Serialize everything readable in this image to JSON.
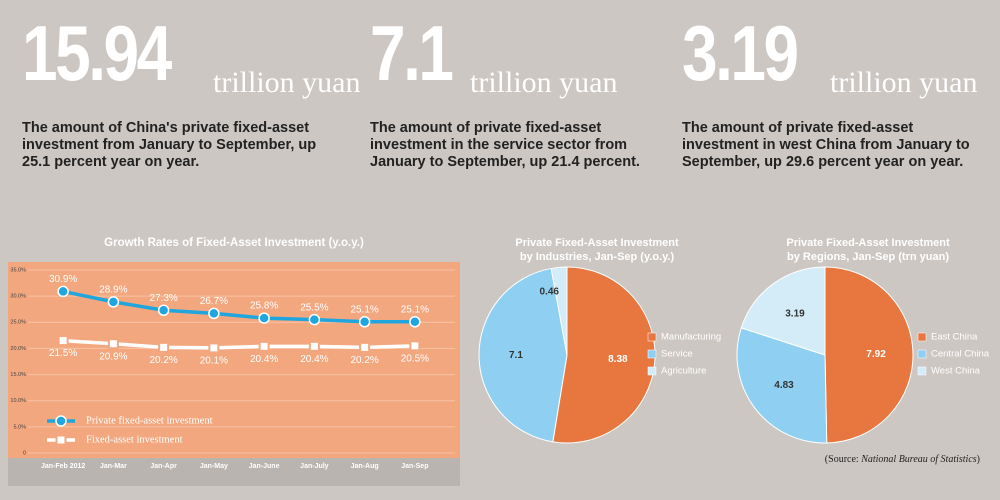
{
  "stats": [
    {
      "number": "15.94",
      "unit": "trillion yuan",
      "text": "The amount of China's private fixed-asset investment from January to September, up 25.1 percent year on year."
    },
    {
      "number": "7.1",
      "unit": "trillion yuan",
      "text": "The amount of private fixed-asset investment in the service sector from January to September, up 21.4 percent."
    },
    {
      "number": "3.19",
      "unit": "trillion yuan",
      "text": "The amount of private fixed-asset investment in west China from January to September, up 29.6 percent year on year."
    }
  ],
  "chart_data": [
    {
      "type": "line",
      "title": "Growth Rates of Fixed-Asset Investment (y.o.y.)",
      "categories": [
        "Jan-Feb 2012",
        "Jan-Mar",
        "Jan-Apr",
        "Jan-May",
        "Jan-June",
        "Jan-July",
        "Jan-Aug",
        "Jan-Sep"
      ],
      "ylim": [
        0,
        35
      ],
      "yticks": [
        0,
        {
          "value": 5,
          "label": "5.0%"
        },
        {
          "value": 10,
          "label": "10.0%"
        },
        {
          "value": 15,
          "label": "15.0%"
        },
        {
          "value": 20,
          "label": "20.0%"
        },
        {
          "value": 25,
          "label": "25.0%"
        },
        {
          "value": 30,
          "label": "30.0%"
        },
        {
          "value": 35,
          "label": "35.0%"
        }
      ],
      "grid": true,
      "legend": "lower left",
      "series": [
        {
          "name": "Private fixed-asset investment",
          "color": "#1fa6df",
          "marker": "circle",
          "values": [
            30.9,
            28.9,
            27.3,
            26.7,
            25.8,
            25.5,
            25.1,
            25.1
          ],
          "value_labels": [
            "30.9%",
            "28.9%",
            "27.3%",
            "26.7%",
            "25.8%",
            "25.5%",
            "25.1%",
            "25.1%"
          ]
        },
        {
          "name": "Fixed-asset investment",
          "color": "#ffffff",
          "marker": "square",
          "values": [
            21.5,
            20.9,
            20.2,
            20.1,
            20.4,
            20.4,
            20.2,
            20.5
          ],
          "value_labels": [
            "21.5%",
            "20.9%",
            "20.2%",
            "20.1%",
            "20.4%",
            "20.4%",
            "20.2%",
            "20.5%"
          ]
        }
      ]
    },
    {
      "type": "pie",
      "title": [
        "Private Fixed-Asset Investment",
        "by Industries, Jan-Sep (y.o.y.)"
      ],
      "categories": [
        "Manufacturing",
        "Service",
        "Agriculture"
      ],
      "values": [
        8.38,
        7.1,
        0.46
      ],
      "colors": [
        "#e8773f",
        "#8fd0f2",
        "#d3ecf8"
      ]
    },
    {
      "type": "pie",
      "title": [
        "Private Fixed-Asset Investment",
        "by Regions, Jan-Sep (trn yuan)"
      ],
      "categories": [
        "East China",
        "Central China",
        "West China"
      ],
      "values": [
        7.92,
        4.83,
        3.19
      ],
      "colors": [
        "#e8773f",
        "#8fd0f2",
        "#d3ecf8"
      ]
    }
  ],
  "source": {
    "prefix": "(Source: ",
    "name": "National Bureau of Statistics",
    "suffix": ")"
  }
}
